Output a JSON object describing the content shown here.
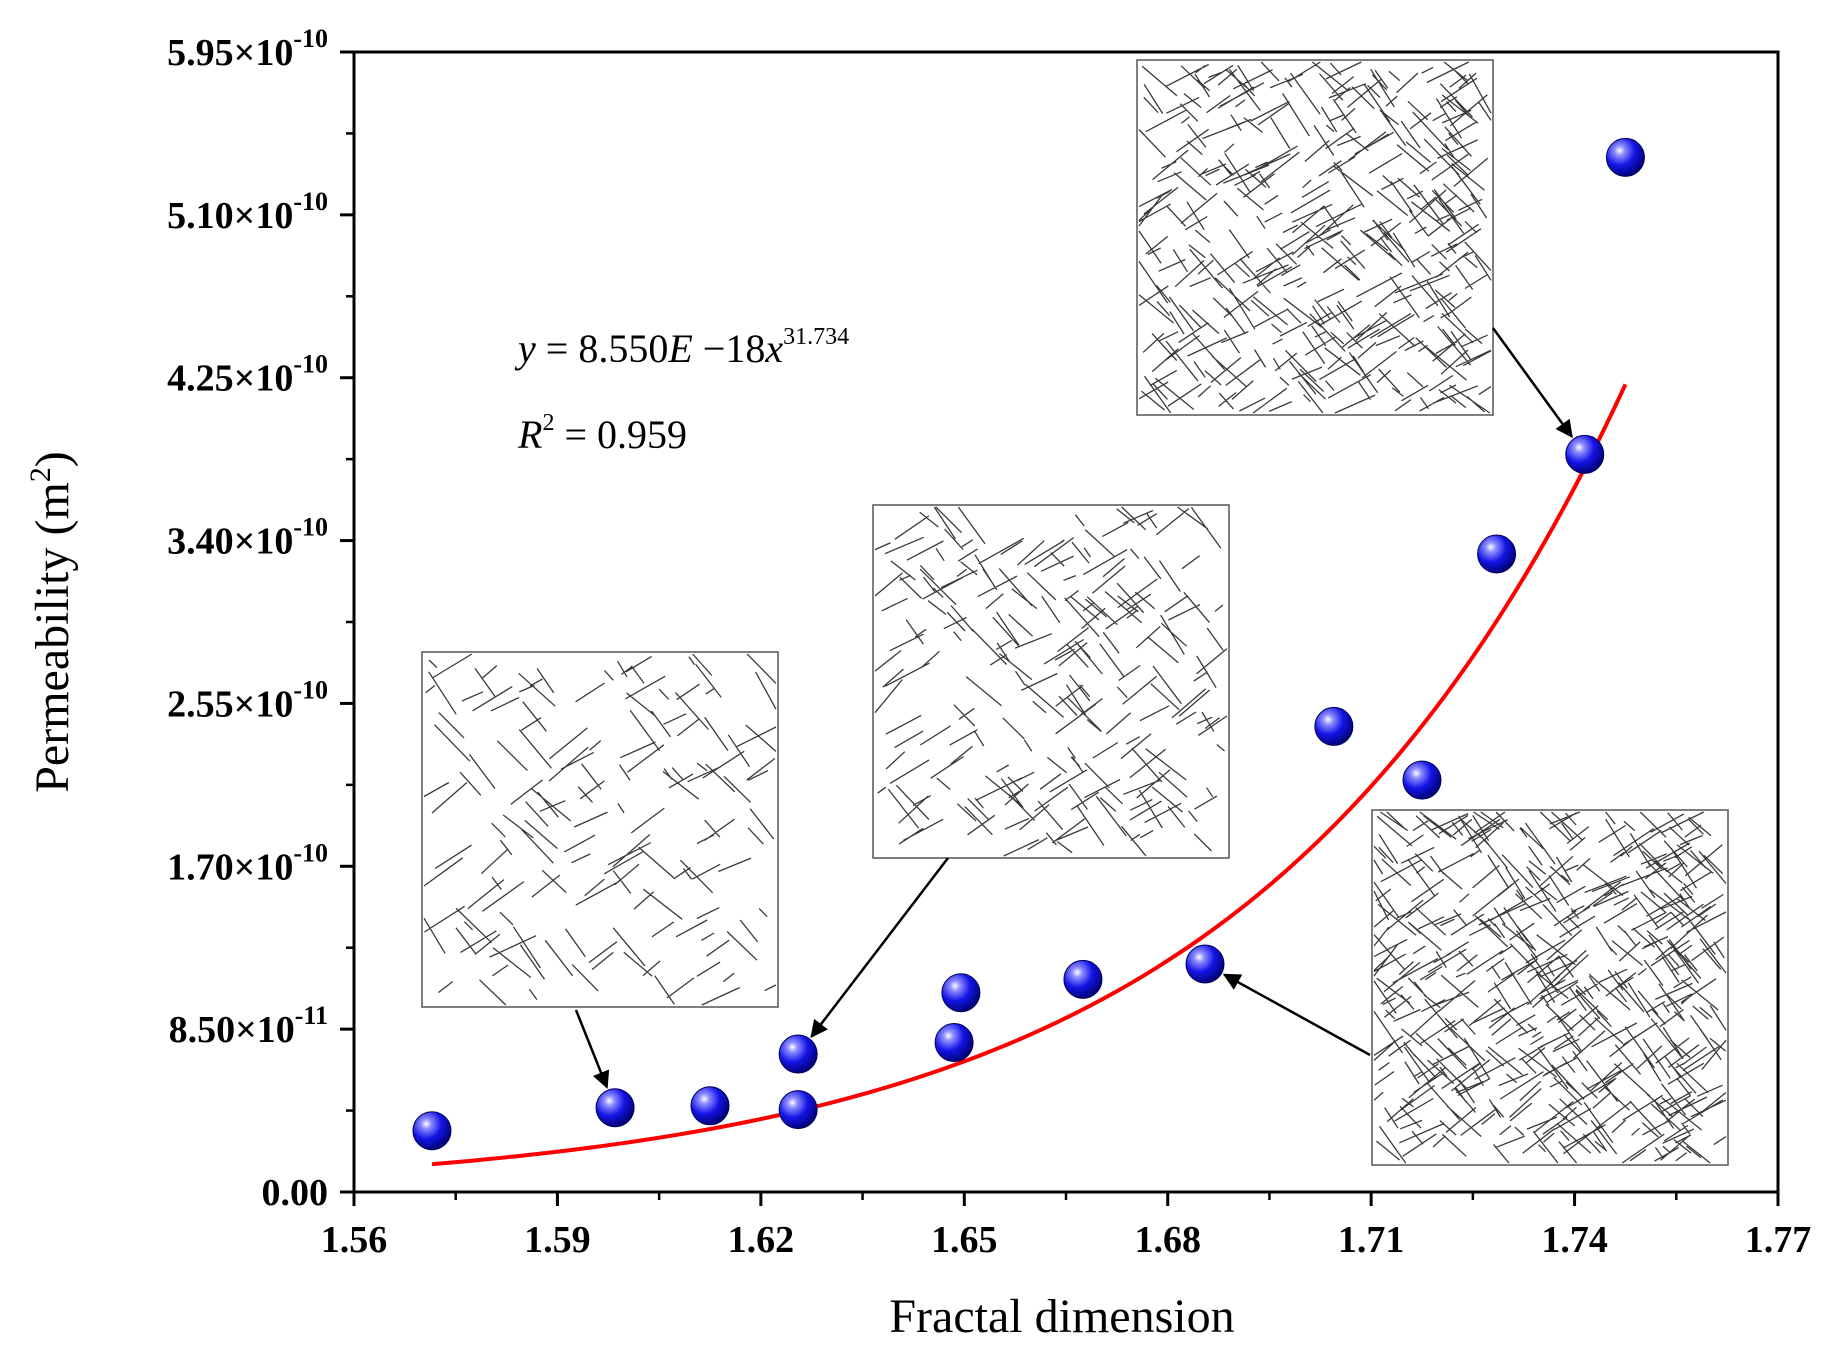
{
  "chart_data": {
    "type": "scatter",
    "title": "",
    "xlabel": "Fractal dimension",
    "ylabel": "Permeability (m",
    "ylabel_sup": "2",
    "ylabel_close": ")",
    "xlim": [
      1.56,
      1.77
    ],
    "ylim": [
      0,
      5.95e-10
    ],
    "x_ticks": [
      {
        "value": 1.56,
        "label": "1.56"
      },
      {
        "value": 1.59,
        "label": "1.59"
      },
      {
        "value": 1.62,
        "label": "1.62"
      },
      {
        "value": 1.65,
        "label": "1.65"
      },
      {
        "value": 1.68,
        "label": "1.68"
      },
      {
        "value": 1.71,
        "label": "1.71"
      },
      {
        "value": 1.74,
        "label": "1.74"
      },
      {
        "value": 1.77,
        "label": "1.77"
      }
    ],
    "y_ticks": [
      {
        "value": 0,
        "mant": "0.00",
        "exp": ""
      },
      {
        "value": 8.5e-11,
        "mant": "8.50×10",
        "exp": "-11"
      },
      {
        "value": 1.7e-10,
        "mant": "1.70×10",
        "exp": "-10"
      },
      {
        "value": 2.55e-10,
        "mant": "2.55×10",
        "exp": "-10"
      },
      {
        "value": 3.4e-10,
        "mant": "3.40×10",
        "exp": "-10"
      },
      {
        "value": 4.25e-10,
        "mant": "4.25×10",
        "exp": "-10"
      },
      {
        "value": 5.1e-10,
        "mant": "5.10×10",
        "exp": "-10"
      },
      {
        "value": 5.95e-10,
        "mant": "5.95×10",
        "exp": "-10"
      }
    ],
    "series": [
      {
        "name": "Permeability",
        "marker": "sphere",
        "color": "#1f1fe0",
        "points": [
          {
            "x": 1.5715,
            "y": 3.2e-11
          },
          {
            "x": 1.5985,
            "y": 4.4e-11
          },
          {
            "x": 1.6125,
            "y": 4.5e-11
          },
          {
            "x": 1.6255,
            "y": 4.3e-11
          },
          {
            "x": 1.6255,
            "y": 7.2e-11
          },
          {
            "x": 1.6485,
            "y": 7.8e-11
          },
          {
            "x": 1.6495,
            "y": 1.04e-10
          },
          {
            "x": 1.6675,
            "y": 1.11e-10
          },
          {
            "x": 1.6855,
            "y": 1.19e-10
          },
          {
            "x": 1.7045,
            "y": 2.43e-10
          },
          {
            "x": 1.7175,
            "y": 2.15e-10
          },
          {
            "x": 1.7285,
            "y": 3.33e-10
          },
          {
            "x": 1.7415,
            "y": 3.85e-10
          },
          {
            "x": 1.7475,
            "y": 5.4e-10
          }
        ]
      },
      {
        "name": "Power-law fit",
        "type": "line",
        "color": "#ff0000",
        "formula": {
          "a": 8.55e-18,
          "b": 31.734
        },
        "x_range": [
          1.5715,
          1.7475
        ]
      }
    ],
    "annotations": {
      "equation": {
        "y_var": "y",
        "eq": " = 8.550",
        "e_var": "E",
        "minus": " −18",
        "x_var": "x",
        "exponent": "31.734"
      },
      "r_squared": {
        "r_var": "R",
        "sup": "2",
        "value": " = 0.959"
      }
    },
    "insets": [
      {
        "name": "fracture-network-low",
        "density": "low",
        "points_to": {
          "x": 1.5985,
          "y": 4.4e-11
        }
      },
      {
        "name": "fracture-network-medium",
        "density": "medium",
        "points_to": {
          "x": 1.6255,
          "y": 7.2e-11
        }
      },
      {
        "name": "fracture-network-high",
        "density": "high",
        "points_to": {
          "x": 1.7415,
          "y": 3.85e-10
        }
      },
      {
        "name": "fracture-network-dense",
        "density": "very-high",
        "points_to": {
          "x": 1.6855,
          "y": 1.19e-10
        }
      }
    ]
  }
}
